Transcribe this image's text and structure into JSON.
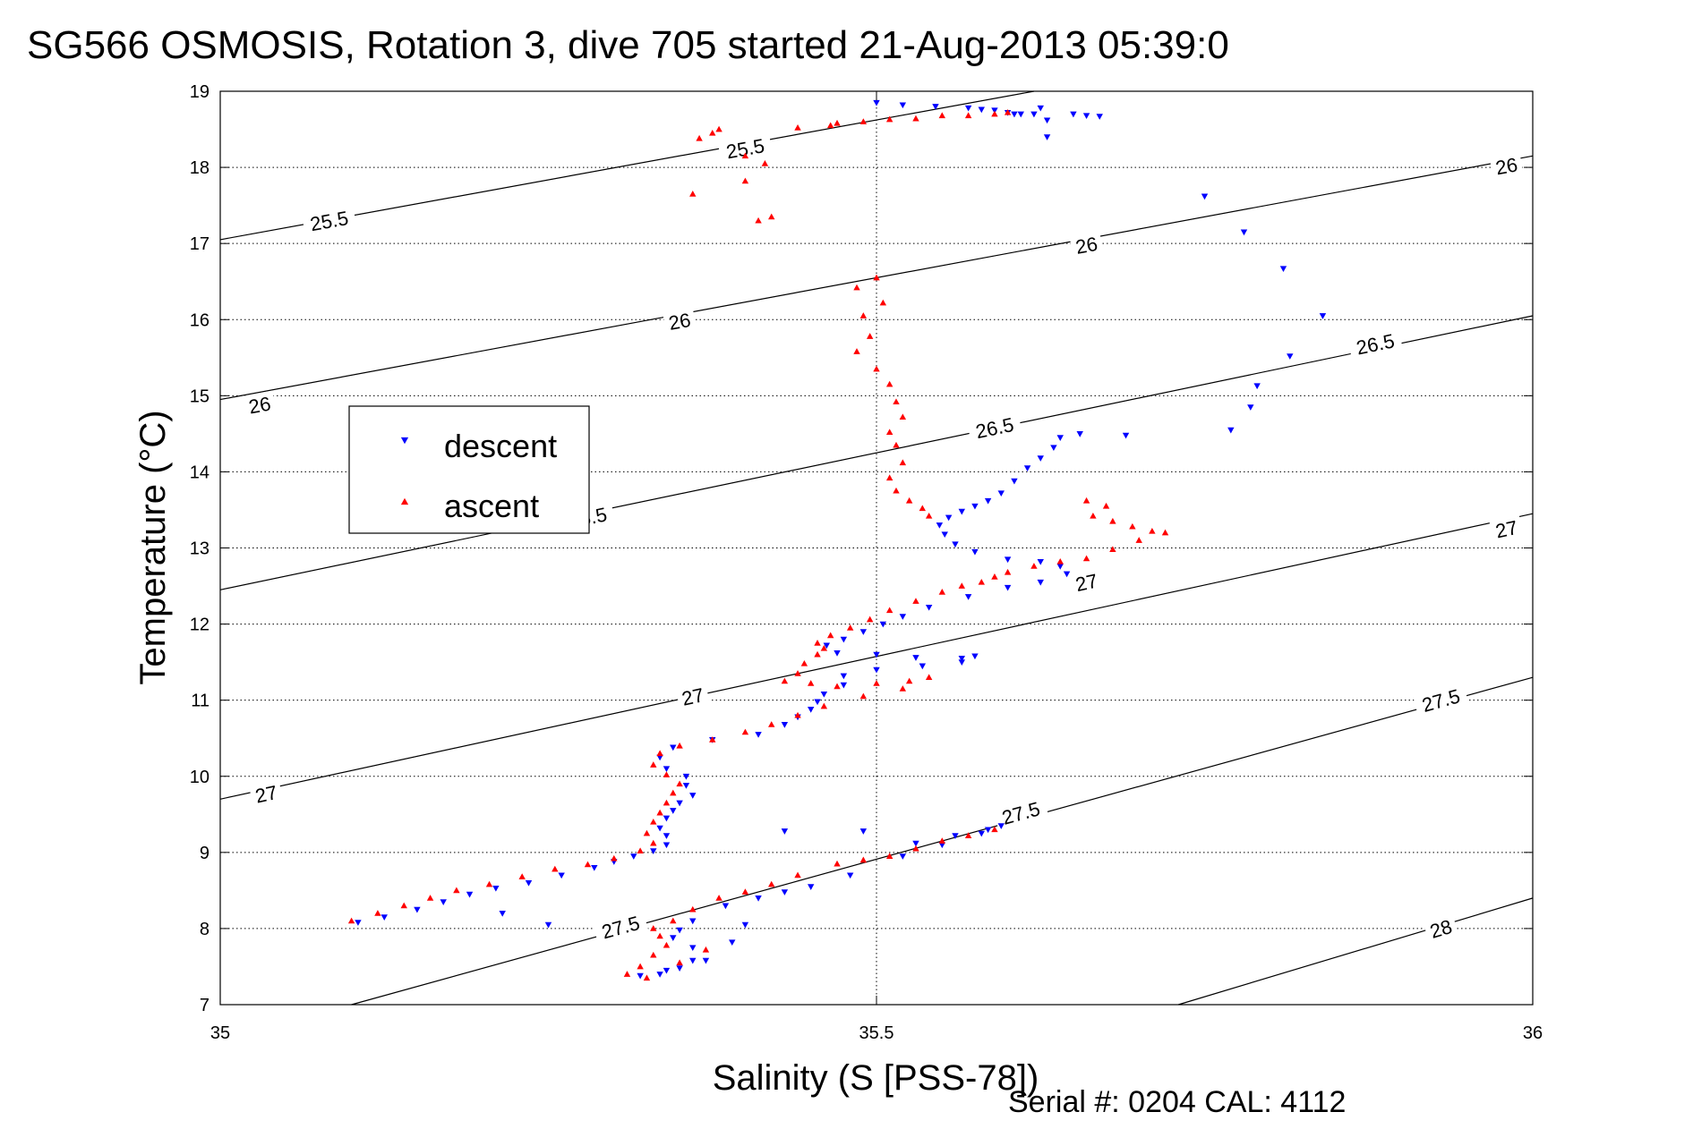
{
  "chart_data": {
    "type": "scatter",
    "title": "SG566 OSMOSIS, Rotation 3, dive 705 started 21-Aug-2013 05:39:0",
    "xlabel": "Salinity (S [PSS-78])",
    "ylabel": "Temperature (°C)",
    "footer": "Serial #: 0204  CAL: 4112",
    "xlim": [
      35,
      36
    ],
    "ylim": [
      7,
      19
    ],
    "xticks": [
      "35",
      "35.5",
      "36"
    ],
    "yticks": [
      "7",
      "8",
      "9",
      "10",
      "11",
      "12",
      "13",
      "14",
      "15",
      "16",
      "17",
      "18",
      "19"
    ],
    "grid": "dotted",
    "legend": {
      "placement": "upper-left",
      "entries": [
        "descent",
        "ascent"
      ]
    },
    "colors": {
      "descent": "#0000ff",
      "ascent": "#ff0000",
      "contour": "#000000"
    },
    "density_contours": [
      {
        "level": "25.5",
        "points": [
          [
            35.0,
            17.05
          ],
          [
            35.62,
            19.0
          ]
        ],
        "labels": [
          [
            35.083,
            17.3
          ],
          [
            35.4,
            18.25
          ]
        ]
      },
      {
        "level": "26",
        "points": [
          [
            35.0,
            14.95
          ],
          [
            36.0,
            18.15
          ]
        ],
        "labels": [
          [
            35.03,
            14.88
          ],
          [
            35.35,
            15.98
          ],
          [
            35.66,
            16.98
          ],
          [
            35.98,
            18.02
          ]
        ]
      },
      {
        "level": "26.5",
        "points": [
          [
            35.0,
            12.45
          ],
          [
            36.0,
            16.05
          ]
        ],
        "labels": [
          [
            35.28,
            13.4
          ],
          [
            35.59,
            14.58
          ],
          [
            35.88,
            15.68
          ]
        ]
      },
      {
        "level": "27",
        "points": [
          [
            35.0,
            9.7
          ],
          [
            36.0,
            13.45
          ]
        ],
        "labels": [
          [
            35.035,
            9.77
          ],
          [
            35.36,
            11.05
          ],
          [
            35.66,
            12.55
          ],
          [
            35.98,
            13.25
          ]
        ]
      },
      {
        "level": "27.5",
        "points": [
          [
            35.1,
            7.0
          ],
          [
            36.0,
            11.3
          ]
        ],
        "labels": [
          [
            35.305,
            8.02
          ],
          [
            35.61,
            9.52
          ],
          [
            35.93,
            11.0
          ]
        ]
      },
      {
        "level": "28",
        "points": [
          [
            35.73,
            7.0
          ],
          [
            36.0,
            8.4
          ]
        ],
        "labels": [
          [
            35.93,
            8.0
          ]
        ]
      }
    ],
    "series": [
      {
        "name": "descent",
        "marker": "triangle-down",
        "points": [
          [
            35.5,
            18.85
          ],
          [
            35.52,
            18.82
          ],
          [
            35.545,
            18.8
          ],
          [
            35.57,
            18.78
          ],
          [
            35.58,
            18.76
          ],
          [
            35.59,
            18.75
          ],
          [
            35.6,
            18.72
          ],
          [
            35.605,
            18.7
          ],
          [
            35.61,
            18.7
          ],
          [
            35.62,
            18.7
          ],
          [
            35.625,
            18.78
          ],
          [
            35.63,
            18.62
          ],
          [
            35.65,
            18.7
          ],
          [
            35.66,
            18.68
          ],
          [
            35.63,
            18.4
          ],
          [
            35.67,
            18.67
          ],
          [
            35.75,
            17.62
          ],
          [
            35.78,
            17.15
          ],
          [
            35.81,
            16.67
          ],
          [
            35.84,
            16.05
          ],
          [
            35.815,
            15.52
          ],
          [
            35.79,
            15.13
          ],
          [
            35.785,
            14.85
          ],
          [
            35.77,
            14.55
          ],
          [
            35.69,
            14.48
          ],
          [
            35.655,
            14.5
          ],
          [
            35.64,
            14.45
          ],
          [
            35.635,
            14.32
          ],
          [
            35.625,
            14.18
          ],
          [
            35.615,
            14.05
          ],
          [
            35.605,
            13.88
          ],
          [
            35.595,
            13.72
          ],
          [
            35.585,
            13.62
          ],
          [
            35.575,
            13.55
          ],
          [
            35.565,
            13.48
          ],
          [
            35.555,
            13.4
          ],
          [
            35.548,
            13.3
          ],
          [
            35.552,
            13.18
          ],
          [
            35.56,
            13.05
          ],
          [
            35.575,
            12.95
          ],
          [
            35.6,
            12.85
          ],
          [
            35.625,
            12.82
          ],
          [
            35.64,
            12.76
          ],
          [
            35.645,
            12.66
          ],
          [
            35.625,
            12.55
          ],
          [
            35.6,
            12.48
          ],
          [
            35.57,
            12.36
          ],
          [
            35.54,
            12.22
          ],
          [
            35.52,
            12.1
          ],
          [
            35.505,
            12.0
          ],
          [
            35.49,
            11.9
          ],
          [
            35.475,
            11.8
          ],
          [
            35.462,
            11.72
          ],
          [
            35.47,
            11.62
          ],
          [
            35.5,
            11.6
          ],
          [
            35.53,
            11.56
          ],
          [
            35.565,
            11.55
          ],
          [
            35.575,
            11.58
          ],
          [
            35.565,
            11.5
          ],
          [
            35.535,
            11.45
          ],
          [
            35.5,
            11.4
          ],
          [
            35.475,
            11.32
          ],
          [
            35.475,
            11.2
          ],
          [
            35.46,
            11.08
          ],
          [
            35.455,
            10.98
          ],
          [
            35.45,
            10.88
          ],
          [
            35.44,
            10.78
          ],
          [
            35.43,
            10.68
          ],
          [
            35.41,
            10.55
          ],
          [
            35.375,
            10.48
          ],
          [
            35.345,
            10.38
          ],
          [
            35.335,
            10.25
          ],
          [
            35.34,
            10.1
          ],
          [
            35.355,
            10.0
          ],
          [
            35.355,
            9.88
          ],
          [
            35.36,
            9.75
          ],
          [
            35.35,
            9.65
          ],
          [
            35.345,
            9.55
          ],
          [
            35.34,
            9.45
          ],
          [
            35.335,
            9.32
          ],
          [
            35.34,
            9.22
          ],
          [
            35.34,
            9.1
          ],
          [
            35.33,
            9.02
          ],
          [
            35.315,
            8.95
          ],
          [
            35.3,
            8.88
          ],
          [
            35.285,
            8.8
          ],
          [
            35.26,
            8.7
          ],
          [
            35.235,
            8.6
          ],
          [
            35.21,
            8.53
          ],
          [
            35.19,
            8.45
          ],
          [
            35.17,
            8.35
          ],
          [
            35.15,
            8.25
          ],
          [
            35.125,
            8.15
          ],
          [
            35.105,
            8.08
          ],
          [
            35.215,
            8.2
          ],
          [
            35.25,
            8.05
          ],
          [
            35.43,
            9.28
          ],
          [
            35.49,
            9.28
          ],
          [
            35.53,
            9.12
          ],
          [
            35.56,
            9.22
          ],
          [
            35.585,
            9.3
          ],
          [
            35.595,
            9.35
          ],
          [
            35.58,
            9.25
          ],
          [
            35.55,
            9.1
          ],
          [
            35.52,
            8.95
          ],
          [
            35.48,
            8.7
          ],
          [
            35.45,
            8.55
          ],
          [
            35.43,
            8.48
          ],
          [
            35.41,
            8.4
          ],
          [
            35.385,
            8.3
          ],
          [
            35.36,
            8.1
          ],
          [
            35.35,
            7.98
          ],
          [
            35.345,
            7.88
          ],
          [
            35.36,
            7.75
          ],
          [
            35.36,
            7.58
          ],
          [
            35.35,
            7.48
          ],
          [
            35.335,
            7.4
          ],
          [
            35.32,
            7.38
          ],
          [
            35.34,
            7.45
          ],
          [
            35.37,
            7.58
          ],
          [
            35.39,
            7.82
          ],
          [
            35.4,
            8.05
          ]
        ]
      },
      {
        "name": "ascent",
        "marker": "triangle-up",
        "points": [
          [
            35.47,
            18.58
          ],
          [
            35.49,
            18.6
          ],
          [
            35.51,
            18.63
          ],
          [
            35.53,
            18.64
          ],
          [
            35.55,
            18.68
          ],
          [
            35.57,
            18.68
          ],
          [
            35.59,
            18.7
          ],
          [
            35.6,
            18.72
          ],
          [
            35.44,
            18.52
          ],
          [
            35.465,
            18.55
          ],
          [
            35.365,
            18.38
          ],
          [
            35.375,
            18.45
          ],
          [
            35.38,
            18.5
          ],
          [
            35.4,
            18.15
          ],
          [
            35.415,
            18.05
          ],
          [
            35.4,
            17.82
          ],
          [
            35.36,
            17.65
          ],
          [
            35.42,
            17.35
          ],
          [
            35.41,
            17.3
          ],
          [
            35.5,
            16.55
          ],
          [
            35.485,
            16.42
          ],
          [
            35.505,
            16.22
          ],
          [
            35.49,
            16.05
          ],
          [
            35.495,
            15.78
          ],
          [
            35.485,
            15.58
          ],
          [
            35.5,
            15.35
          ],
          [
            35.51,
            15.15
          ],
          [
            35.515,
            14.92
          ],
          [
            35.52,
            14.72
          ],
          [
            35.51,
            14.52
          ],
          [
            35.515,
            14.35
          ],
          [
            35.52,
            14.12
          ],
          [
            35.51,
            13.92
          ],
          [
            35.515,
            13.75
          ],
          [
            35.525,
            13.62
          ],
          [
            35.535,
            13.52
          ],
          [
            35.54,
            13.42
          ],
          [
            35.66,
            13.62
          ],
          [
            35.675,
            13.55
          ],
          [
            35.665,
            13.42
          ],
          [
            35.68,
            13.35
          ],
          [
            35.695,
            13.28
          ],
          [
            35.71,
            13.22
          ],
          [
            35.72,
            13.2
          ],
          [
            35.7,
            13.1
          ],
          [
            35.68,
            12.98
          ],
          [
            35.66,
            12.86
          ],
          [
            35.64,
            12.82
          ],
          [
            35.62,
            12.76
          ],
          [
            35.6,
            12.68
          ],
          [
            35.59,
            12.62
          ],
          [
            35.58,
            12.55
          ],
          [
            35.565,
            12.5
          ],
          [
            35.55,
            12.42
          ],
          [
            35.53,
            12.3
          ],
          [
            35.51,
            12.18
          ],
          [
            35.495,
            12.06
          ],
          [
            35.48,
            11.95
          ],
          [
            35.465,
            11.85
          ],
          [
            35.455,
            11.75
          ],
          [
            35.46,
            11.68
          ],
          [
            35.455,
            11.6
          ],
          [
            35.445,
            11.48
          ],
          [
            35.44,
            11.35
          ],
          [
            35.43,
            11.25
          ],
          [
            35.45,
            11.22
          ],
          [
            35.47,
            11.18
          ],
          [
            35.5,
            11.22
          ],
          [
            35.525,
            11.25
          ],
          [
            35.54,
            11.3
          ],
          [
            35.52,
            11.15
          ],
          [
            35.49,
            11.05
          ],
          [
            35.46,
            10.92
          ],
          [
            35.44,
            10.8
          ],
          [
            35.42,
            10.68
          ],
          [
            35.4,
            10.58
          ],
          [
            35.375,
            10.48
          ],
          [
            35.35,
            10.4
          ],
          [
            35.335,
            10.3
          ],
          [
            35.33,
            10.15
          ],
          [
            35.34,
            10.02
          ],
          [
            35.35,
            9.9
          ],
          [
            35.345,
            9.78
          ],
          [
            35.34,
            9.65
          ],
          [
            35.335,
            9.52
          ],
          [
            35.33,
            9.4
          ],
          [
            35.325,
            9.25
          ],
          [
            35.33,
            9.12
          ],
          [
            35.32,
            9.02
          ],
          [
            35.3,
            8.92
          ],
          [
            35.28,
            8.84
          ],
          [
            35.255,
            8.78
          ],
          [
            35.23,
            8.68
          ],
          [
            35.205,
            8.58
          ],
          [
            35.18,
            8.5
          ],
          [
            35.16,
            8.4
          ],
          [
            35.14,
            8.3
          ],
          [
            35.12,
            8.2
          ],
          [
            35.1,
            8.1
          ],
          [
            35.47,
            8.85
          ],
          [
            35.49,
            8.9
          ],
          [
            35.51,
            8.95
          ],
          [
            35.53,
            9.05
          ],
          [
            35.55,
            9.15
          ],
          [
            35.57,
            9.22
          ],
          [
            35.59,
            9.3
          ],
          [
            35.44,
            8.7
          ],
          [
            35.42,
            8.58
          ],
          [
            35.4,
            8.48
          ],
          [
            35.38,
            8.4
          ],
          [
            35.36,
            8.25
          ],
          [
            35.345,
            8.1
          ],
          [
            35.33,
            8.0
          ],
          [
            35.335,
            7.9
          ],
          [
            35.34,
            7.78
          ],
          [
            35.33,
            7.65
          ],
          [
            35.32,
            7.5
          ],
          [
            35.31,
            7.4
          ],
          [
            35.325,
            7.35
          ],
          [
            35.35,
            7.55
          ],
          [
            35.37,
            7.72
          ]
        ]
      }
    ]
  }
}
